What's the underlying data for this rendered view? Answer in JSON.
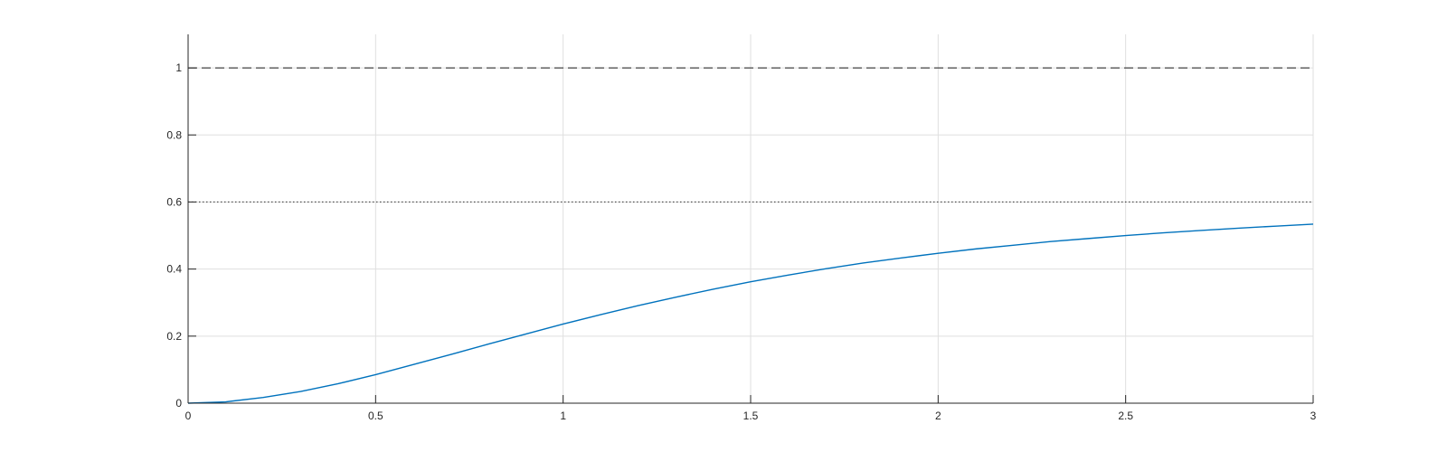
{
  "chart_data": {
    "type": "line",
    "title": "",
    "xlabel": "",
    "ylabel": "",
    "xlim": [
      0,
      3
    ],
    "ylim": [
      0,
      1.1
    ],
    "xticks": [
      0,
      0.5,
      1,
      1.5,
      2,
      2.5,
      3
    ],
    "xtick_labels": [
      "0",
      "0.5",
      "1",
      "1.5",
      "2",
      "2.5",
      "3"
    ],
    "yticks": [
      0,
      0.2,
      0.4,
      0.6,
      0.8,
      1
    ],
    "ytick_labels": [
      "0",
      "0.2",
      "0.4",
      "0.6",
      "0.8",
      "1"
    ],
    "grid": true,
    "legend": "none",
    "series": [
      {
        "style": "solid",
        "color": "#0072bd",
        "x": [
          0,
          0.1,
          0.2,
          0.3,
          0.4,
          0.5,
          0.6,
          0.7,
          0.8,
          0.9,
          1.0,
          1.1,
          1.2,
          1.3,
          1.4,
          1.5,
          1.6,
          1.7,
          1.8,
          1.9,
          2.0,
          2.1,
          2.2,
          2.3,
          2.4,
          2.5,
          2.6,
          2.7,
          2.8,
          2.9,
          3.0
        ],
        "y": [
          0,
          0.004,
          0.017,
          0.035,
          0.058,
          0.085,
          0.115,
          0.145,
          0.176,
          0.206,
          0.236,
          0.264,
          0.291,
          0.316,
          0.34,
          0.362,
          0.382,
          0.401,
          0.418,
          0.433,
          0.447,
          0.46,
          0.471,
          0.482,
          0.491,
          0.5,
          0.508,
          0.515,
          0.522,
          0.528,
          0.534
        ]
      }
    ],
    "reference_lines": [
      {
        "y": 1,
        "style": "dashed",
        "color": "#444444"
      },
      {
        "y": 0.6,
        "style": "dotted",
        "color": "#444444"
      }
    ]
  }
}
